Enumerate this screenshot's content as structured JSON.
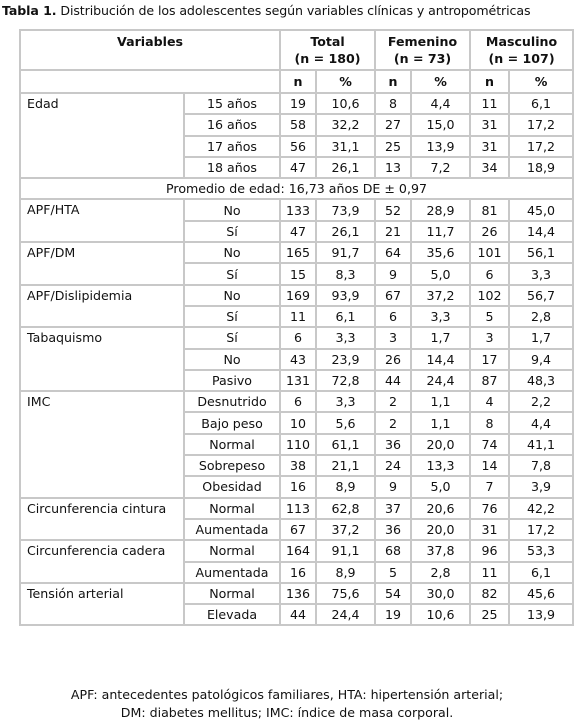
{
  "title": {
    "bold": "Tabla 1.",
    "text": " Distribución de los adolescentes según variables clínicas y antropométricas"
  },
  "header": {
    "variables": "Variables",
    "groups": [
      {
        "name": "Total",
        "n": "(n = 180)"
      },
      {
        "name": "Femenino",
        "n": "(n = 73)"
      },
      {
        "name": "Masculino",
        "n": "(n = 107)"
      }
    ],
    "n_label": "n",
    "pct_label": "%"
  },
  "sections": [
    {
      "label": "Edad",
      "rows": [
        {
          "sub": "15 años",
          "v": [
            "19",
            "10,6",
            "8",
            "4,4",
            "11",
            "6,1"
          ]
        },
        {
          "sub": "16 años",
          "v": [
            "58",
            "32,2",
            "27",
            "15,0",
            "31",
            "17,2"
          ]
        },
        {
          "sub": "17 años",
          "v": [
            "56",
            "31,1",
            "25",
            "13,9",
            "31",
            "17,2"
          ]
        },
        {
          "sub": "18 años",
          "v": [
            "47",
            "26,1",
            "13",
            "7,2",
            "34",
            "18,9"
          ]
        }
      ]
    },
    {
      "mean": "Promedio de edad: 16,73 años DE ± 0,97"
    },
    {
      "label": "APF/HTA",
      "rows": [
        {
          "sub": "No",
          "v": [
            "133",
            "73,9",
            "52",
            "28,9",
            "81",
            "45,0"
          ]
        },
        {
          "sub": "Sí",
          "v": [
            "47",
            "26,1",
            "21",
            "11,7",
            "26",
            "14,4"
          ]
        }
      ]
    },
    {
      "label": "APF/DM",
      "rows": [
        {
          "sub": "No",
          "v": [
            "165",
            "91,7",
            "64",
            "35,6",
            "101",
            "56,1"
          ]
        },
        {
          "sub": "Sí",
          "v": [
            "15",
            "8,3",
            "9",
            "5,0",
            "6",
            "3,3"
          ]
        }
      ]
    },
    {
      "label": "APF/Dislipidemia",
      "rows": [
        {
          "sub": "No",
          "v": [
            "169",
            "93,9",
            "67",
            "37,2",
            "102",
            "56,7"
          ]
        },
        {
          "sub": "Sí",
          "v": [
            "11",
            "6,1",
            "6",
            "3,3",
            "5",
            "2,8"
          ]
        }
      ]
    },
    {
      "label": "Tabaquismo",
      "rows": [
        {
          "sub": "Sí",
          "v": [
            "6",
            "3,3",
            "3",
            "1,7",
            "3",
            "1,7"
          ]
        },
        {
          "sub": "No",
          "v": [
            "43",
            "23,9",
            "26",
            "14,4",
            "17",
            "9,4"
          ]
        },
        {
          "sub": "Pasivo",
          "v": [
            "131",
            "72,8",
            "44",
            "24,4",
            "87",
            "48,3"
          ]
        }
      ]
    },
    {
      "label": "IMC",
      "rows": [
        {
          "sub": "Desnutrido",
          "v": [
            "6",
            "3,3",
            "2",
            "1,1",
            "4",
            "2,2"
          ]
        },
        {
          "sub": "Bajo peso",
          "v": [
            "10",
            "5,6",
            "2",
            "1,1",
            "8",
            "4,4"
          ]
        },
        {
          "sub": "Normal",
          "v": [
            "110",
            "61,1",
            "36",
            "20,0",
            "74",
            "41,1"
          ]
        },
        {
          "sub": "Sobrepeso",
          "v": [
            "38",
            "21,1",
            "24",
            "13,3",
            "14",
            "7,8"
          ]
        },
        {
          "sub": "Obesidad",
          "v": [
            "16",
            "8,9",
            "9",
            "5,0",
            "7",
            "3,9"
          ]
        }
      ]
    },
    {
      "label": "Circunferencia cintura",
      "rows": [
        {
          "sub": "Normal",
          "v": [
            "113",
            "62,8",
            "37",
            "20,6",
            "76",
            "42,2"
          ]
        },
        {
          "sub": "Aumentada",
          "v": [
            "67",
            "37,2",
            "36",
            "20,0",
            "31",
            "17,2"
          ]
        }
      ]
    },
    {
      "label": "Circunferencia cadera",
      "rows": [
        {
          "sub": "Normal",
          "v": [
            "164",
            "91,1",
            "68",
            "37,8",
            "96",
            "53,3"
          ]
        },
        {
          "sub": "Aumentada",
          "v": [
            "16",
            "8,9",
            "5",
            "2,8",
            "11",
            "6,1"
          ]
        }
      ]
    },
    {
      "label": "Tensión arterial",
      "rows": [
        {
          "sub": "Normal",
          "v": [
            "136",
            "75,6",
            "54",
            "30,0",
            "82",
            "45,6"
          ]
        },
        {
          "sub": "Elevada",
          "v": [
            "44",
            "24,4",
            "19",
            "10,6",
            "25",
            "13,9"
          ]
        }
      ]
    }
  ],
  "footnote": {
    "line1": "APF: antecedentes patológicos familiares, HTA: hipertensión arterial;",
    "line2": "DM: diabetes mellitus; IMC: índice de masa corporal."
  }
}
